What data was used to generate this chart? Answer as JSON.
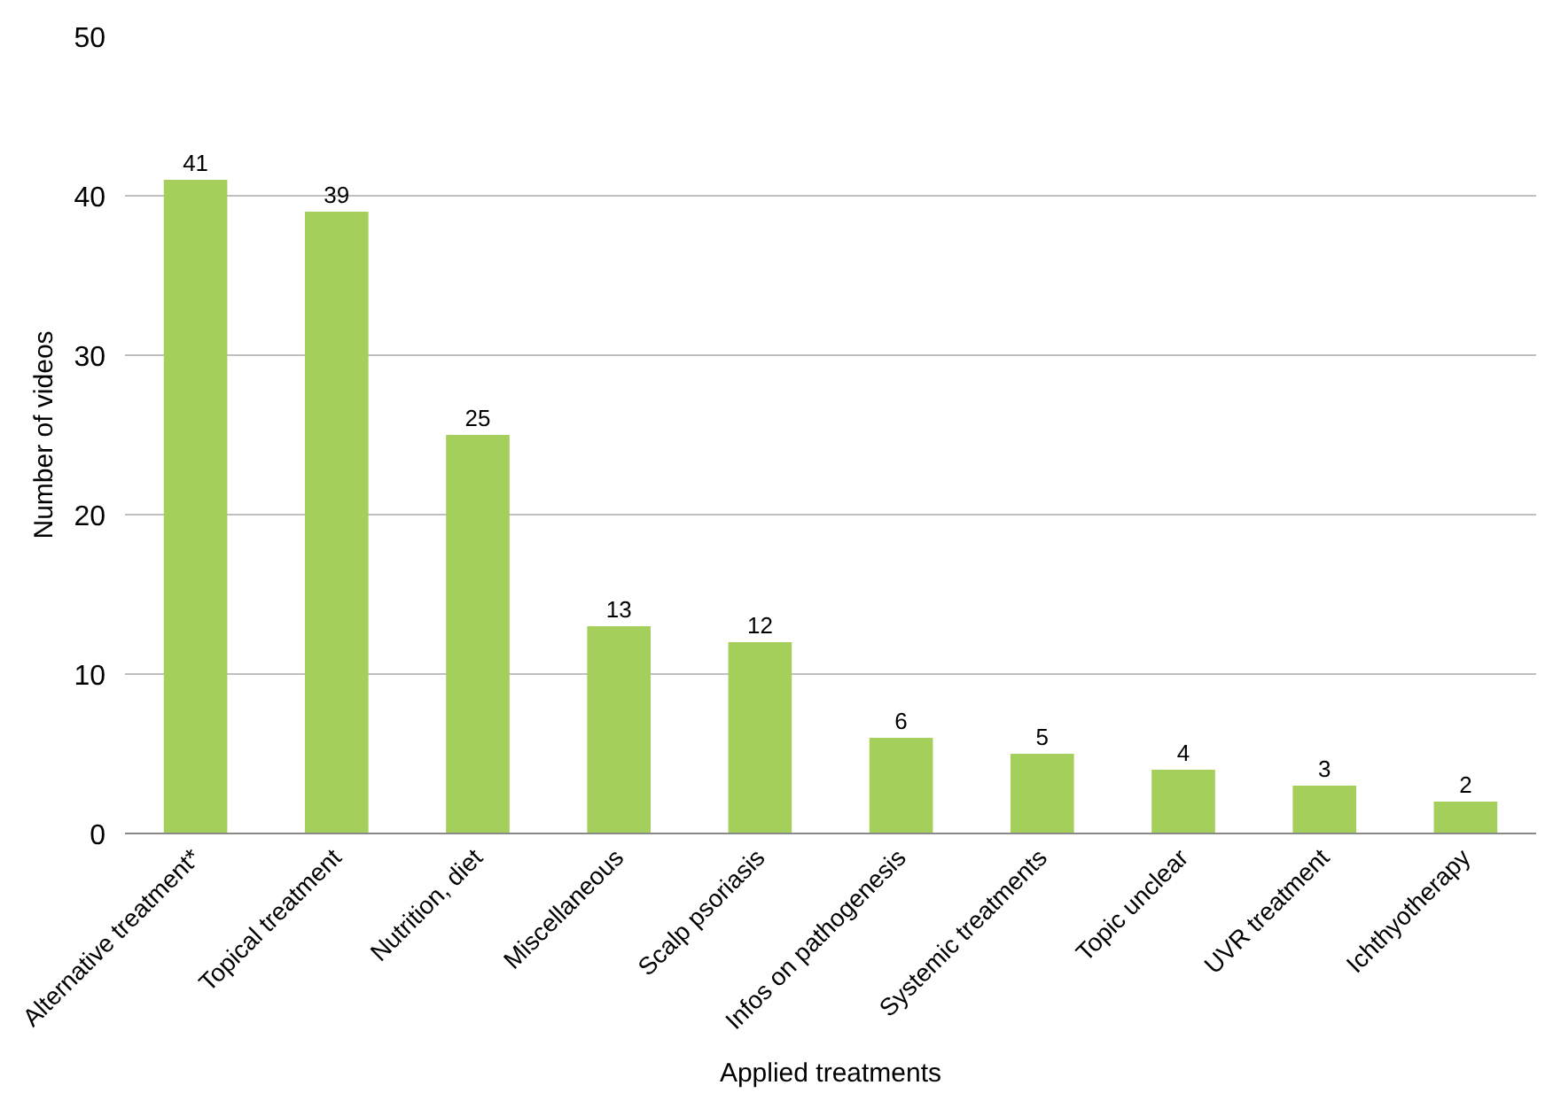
{
  "chart_data": {
    "type": "bar",
    "xlabel": "Applied treatments",
    "ylabel": "Number of videos",
    "categories": [
      "Alternative treatment*",
      "Topical treatment",
      "Nutrition, diet",
      "Miscellaneous",
      "Scalp psoriasis",
      "Infos on pathogenesis",
      "Systemic treatments",
      "Topic unclear",
      "UVR treatment",
      "Ichthyotherapy"
    ],
    "values": [
      41,
      39,
      25,
      13,
      12,
      6,
      5,
      4,
      3,
      2
    ],
    "color": "#a4cf5a",
    "ylim": [
      0,
      50
    ],
    "yticks": [
      0,
      10,
      20,
      30,
      40,
      50
    ],
    "grid": "y",
    "data_labels": true
  }
}
